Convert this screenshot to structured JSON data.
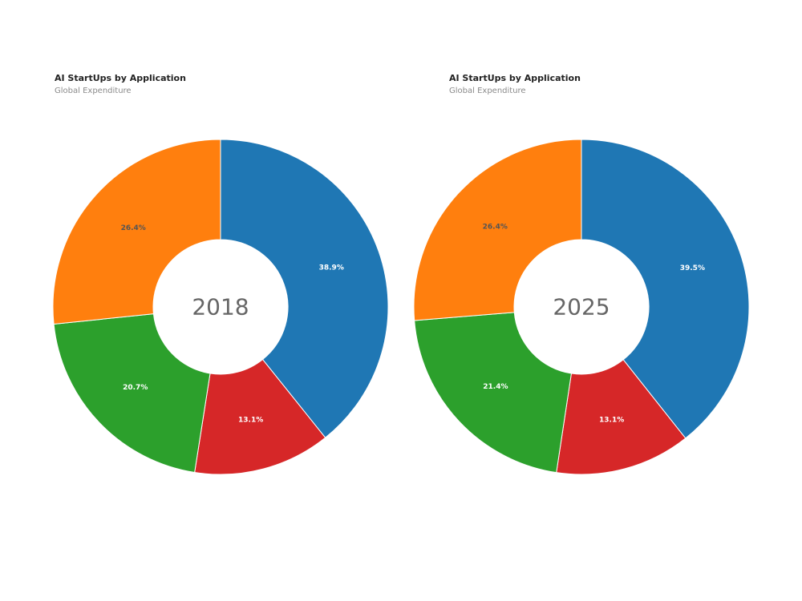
{
  "colors": {
    "blue": "#1f77b4",
    "orange": "#ff7f0e",
    "green": "#2ca02c",
    "red": "#d62728"
  },
  "chart_data": [
    {
      "type": "pie",
      "variant": "donut",
      "title": "AI StartUps by Application",
      "subtitle": "Global Expenditure",
      "center_label": "2018",
      "slices": [
        {
          "value": 38.9,
          "label": "38.9%",
          "color": "#1f77b4",
          "label_color": "#ffffff"
        },
        {
          "value": 13.1,
          "label": "13.1%",
          "color": "#d62728",
          "label_color": "#ffffff"
        },
        {
          "value": 20.7,
          "label": "20.7%",
          "color": "#2ca02c",
          "label_color": "#ffffff"
        },
        {
          "value": 26.4,
          "label": "26.4%",
          "color": "#ff7f0e",
          "label_color": "#555555"
        }
      ]
    },
    {
      "type": "pie",
      "variant": "donut",
      "title": "AI StartUps by Application",
      "subtitle": "Global Expenditure",
      "center_label": "2025",
      "slices": [
        {
          "value": 39.5,
          "label": "39.5%",
          "color": "#1f77b4",
          "label_color": "#ffffff"
        },
        {
          "value": 13.1,
          "label": "13.1%",
          "color": "#d62728",
          "label_color": "#ffffff"
        },
        {
          "value": 21.4,
          "label": "21.4%",
          "color": "#2ca02c",
          "label_color": "#ffffff"
        },
        {
          "value": 26.4,
          "label": "26.4%",
          "color": "#ff7f0e",
          "label_color": "#555555"
        }
      ]
    }
  ]
}
